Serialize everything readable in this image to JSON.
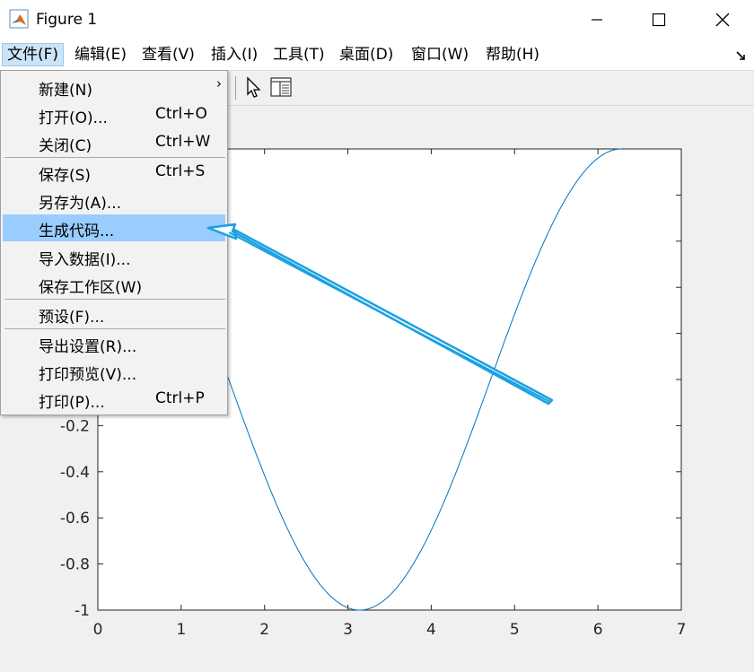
{
  "window": {
    "title": "Figure 1"
  },
  "menubar": {
    "items": [
      {
        "label": "文件(F)"
      },
      {
        "label": "编辑(E)"
      },
      {
        "label": "查看(V)"
      },
      {
        "label": "插入(I)"
      },
      {
        "label": "工具(T)"
      },
      {
        "label": "桌面(D)"
      },
      {
        "label": "窗口(W)"
      },
      {
        "label": "帮助(H)"
      }
    ]
  },
  "file_menu": {
    "items": [
      {
        "label": "新建(N)",
        "shortcut": "",
        "submenu": "›"
      },
      {
        "label": "打开(O)...",
        "shortcut": "Ctrl+O"
      },
      {
        "label": "关闭(C)",
        "shortcut": "Ctrl+W"
      },
      {
        "label": "保存(S)",
        "shortcut": "Ctrl+S"
      },
      {
        "label": "另存为(A)...",
        "shortcut": ""
      },
      {
        "label": "生成代码...",
        "shortcut": "",
        "highlighted": true
      },
      {
        "label": "导入数据(I)...",
        "shortcut": ""
      },
      {
        "label": "保存工作区(W)",
        "shortcut": ""
      },
      {
        "label": "预设(F)...",
        "shortcut": ""
      },
      {
        "label": "导出设置(R)...",
        "shortcut": ""
      },
      {
        "label": "打印预览(V)...",
        "shortcut": ""
      },
      {
        "label": "打印(P)...",
        "shortcut": "Ctrl+P"
      }
    ]
  },
  "colors": {
    "line": "#0072bd",
    "annotation_arrow": "#1ba1e2",
    "highlight": "#99ccff"
  },
  "chart_data": {
    "type": "line",
    "series": [
      {
        "function": "cos(x)",
        "x_start": 0,
        "x_end": 6.2832
      }
    ],
    "xlim": [
      0,
      7
    ],
    "ylim": [
      -1,
      1
    ],
    "xticks": [
      0,
      1,
      2,
      3,
      4,
      5,
      6,
      7
    ],
    "yticks_visible": [
      -1,
      -0.8,
      -0.6,
      -0.4,
      -0.2
    ],
    "ytick_labels": [
      "-1",
      "-0.8",
      "-0.6",
      "-0.4",
      "-0.2"
    ],
    "grid": false
  }
}
